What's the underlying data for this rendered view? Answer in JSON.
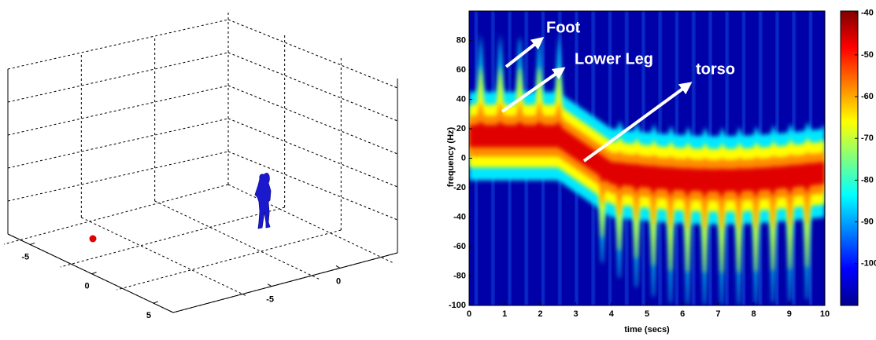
{
  "chart_data": [
    {
      "type": "scene3d",
      "xlim": [
        -6.8,
        6.6
      ],
      "xticks": [
        -5,
        0,
        5
      ],
      "ylim": [
        -12.2,
        4.2
      ],
      "yticks": [
        -5,
        0
      ],
      "grid": true
    },
    {
      "type": "heatmap",
      "colormap": "jet",
      "xlabel": "time (secs)",
      "ylabel": "frequency (Hz)",
      "xlim": [
        0,
        10
      ],
      "xticks": [
        0,
        1,
        2,
        3,
        4,
        5,
        6,
        7,
        8,
        9,
        10
      ],
      "ylim": [
        -100,
        100
      ],
      "yticks": [
        -100,
        -80,
        -60,
        -40,
        -20,
        0,
        20,
        40,
        60,
        80
      ],
      "clim": [
        -110,
        -39.5
      ],
      "cticks": [
        -100,
        -90,
        -80,
        -70,
        -60,
        -50,
        -40
      ],
      "annotations": [
        "Foot",
        "Lower Leg",
        "torso"
      ]
    }
  ]
}
